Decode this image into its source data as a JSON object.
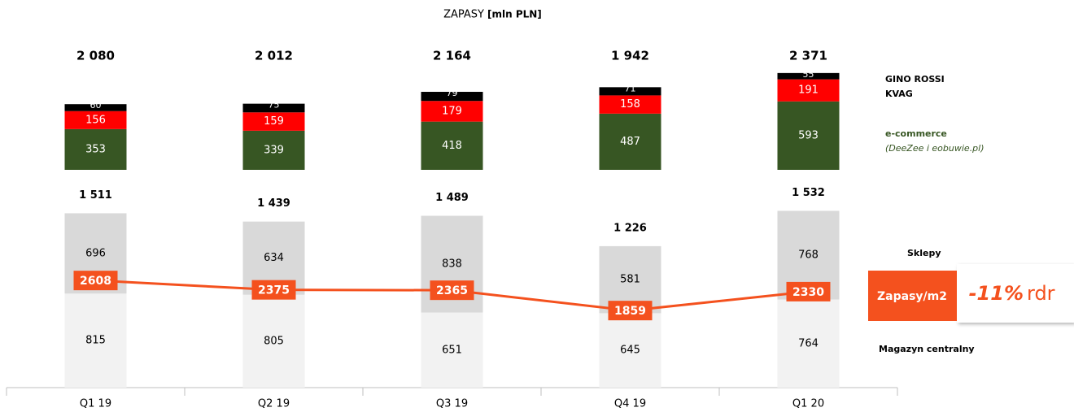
{
  "chart_data": {
    "type": "bar",
    "title": "ZAPASY",
    "unit": "[mln PLN]",
    "categories": [
      "Q1 19",
      "Q2 19",
      "Q3 19",
      "Q4 19",
      "Q1 20"
    ],
    "upper_series": [
      {
        "name": "e-commerce",
        "note": "(DeeZee i eobuwie.pl)",
        "color": "#375623",
        "values": [
          353,
          339,
          418,
          487,
          593
        ]
      },
      {
        "name": "KVAG",
        "color": "#ff0000",
        "values": [
          156,
          159,
          179,
          158,
          191
        ]
      },
      {
        "name": "GINO ROSSI",
        "color": "#000000",
        "values": [
          60,
          75,
          79,
          71,
          55
        ]
      }
    ],
    "totals": [
      {
        "value": 2080,
        "label": "2 080"
      },
      {
        "value": 2012,
        "label": "2 012"
      },
      {
        "value": 2164,
        "label": "2 164"
      },
      {
        "value": 1942,
        "label": "1 942"
      },
      {
        "value": 2371,
        "label": "2 371"
      }
    ],
    "lower_series": [
      {
        "name": "Magazyn centralny",
        "color": "#f2f2f2",
        "values": [
          815,
          805,
          651,
          645,
          764
        ]
      },
      {
        "name": "Sklepy",
        "color": "#d9d9d9",
        "values": [
          696,
          634,
          838,
          581,
          768
        ]
      }
    ],
    "lower_totals": [
      {
        "value": 1511,
        "label": "1 511"
      },
      {
        "value": 1439,
        "label": "1 439"
      },
      {
        "value": 1489,
        "label": "1 489"
      },
      {
        "value": 1226,
        "label": "1 226"
      },
      {
        "value": 1532,
        "label": "1 532"
      }
    ],
    "line": {
      "name": "Zapasy/m2",
      "color": "#f4511e",
      "values": [
        2608,
        2375,
        2365,
        1859,
        2330
      ]
    },
    "change": {
      "value": -11,
      "label": "-11%",
      "suffix": "rdr"
    }
  }
}
